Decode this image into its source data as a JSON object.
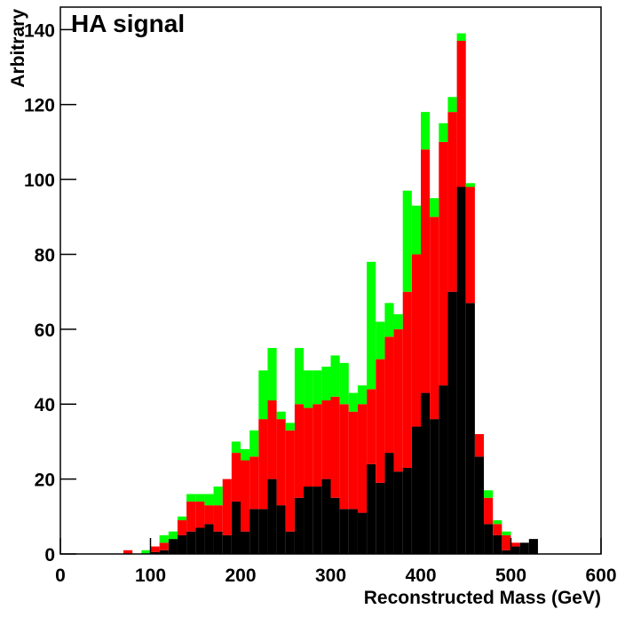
{
  "chart_data": {
    "type": "histogram",
    "title": "HA signal",
    "x_label": "Reconstructed Mass (GeV)",
    "y_label": "Arbitrary",
    "stacked": true,
    "bins": [
      0,
      10,
      20,
      30,
      40,
      50,
      60,
      70,
      80,
      90,
      100,
      110,
      120,
      130,
      140,
      150,
      160,
      170,
      180,
      190,
      200,
      210,
      220,
      230,
      240,
      250,
      260,
      270,
      280,
      290,
      300,
      310,
      320,
      330,
      340,
      350,
      360,
      370,
      380,
      390,
      400,
      410,
      420,
      430,
      440,
      450,
      460,
      470,
      480,
      490,
      500,
      510,
      520,
      530,
      540,
      550,
      560,
      570,
      580,
      590,
      600
    ],
    "series": [
      {
        "color": "#000000",
        "values": [
          0,
          0,
          0,
          0,
          0,
          0,
          0,
          0,
          0,
          0,
          0.5,
          1,
          4,
          5,
          6,
          7,
          8,
          6,
          5,
          14,
          6,
          12,
          12,
          20,
          13,
          6,
          15,
          18,
          18,
          20,
          15,
          12,
          12,
          11,
          24,
          19,
          27,
          22,
          23,
          34,
          43,
          36,
          45,
          70,
          98,
          67,
          26,
          8,
          5,
          1,
          2,
          3,
          4,
          0,
          0,
          0,
          0,
          0,
          0,
          0
        ]
      },
      {
        "color": "#ff0000",
        "values": [
          0,
          0,
          0,
          0,
          0,
          0,
          0,
          1,
          0,
          0,
          1.5,
          2,
          0,
          4,
          8,
          7,
          5,
          7,
          15,
          13,
          19,
          14,
          24,
          21,
          23,
          27,
          25,
          21,
          22,
          21,
          27,
          28,
          26,
          29,
          20,
          33,
          31,
          38,
          47,
          46,
          65,
          54,
          65,
          48,
          39,
          31,
          6,
          7,
          3,
          4,
          1,
          0,
          0,
          0,
          0,
          0,
          0,
          0,
          0,
          0
        ]
      },
      {
        "color": "#00ff00",
        "values": [
          0,
          0,
          0,
          0,
          0,
          0,
          0,
          0,
          0,
          1,
          0,
          2,
          2,
          1,
          2,
          2,
          3,
          5,
          0,
          3,
          3,
          7,
          13,
          14,
          2,
          2,
          15,
          10,
          9,
          9,
          11,
          11,
          5,
          5,
          34,
          10,
          9,
          4,
          27,
          13,
          10,
          5,
          5,
          4,
          2,
          1,
          0,
          2,
          1,
          1,
          0,
          0,
          0,
          0,
          0,
          0,
          0,
          0,
          0,
          0
        ]
      }
    ],
    "xlim": [
      0,
      600
    ],
    "ylim": [
      0,
      146
    ],
    "xticks": [
      0,
      100,
      200,
      300,
      400,
      500,
      600
    ],
    "yticks": [
      0,
      20,
      40,
      60,
      80,
      100,
      120,
      140
    ]
  }
}
